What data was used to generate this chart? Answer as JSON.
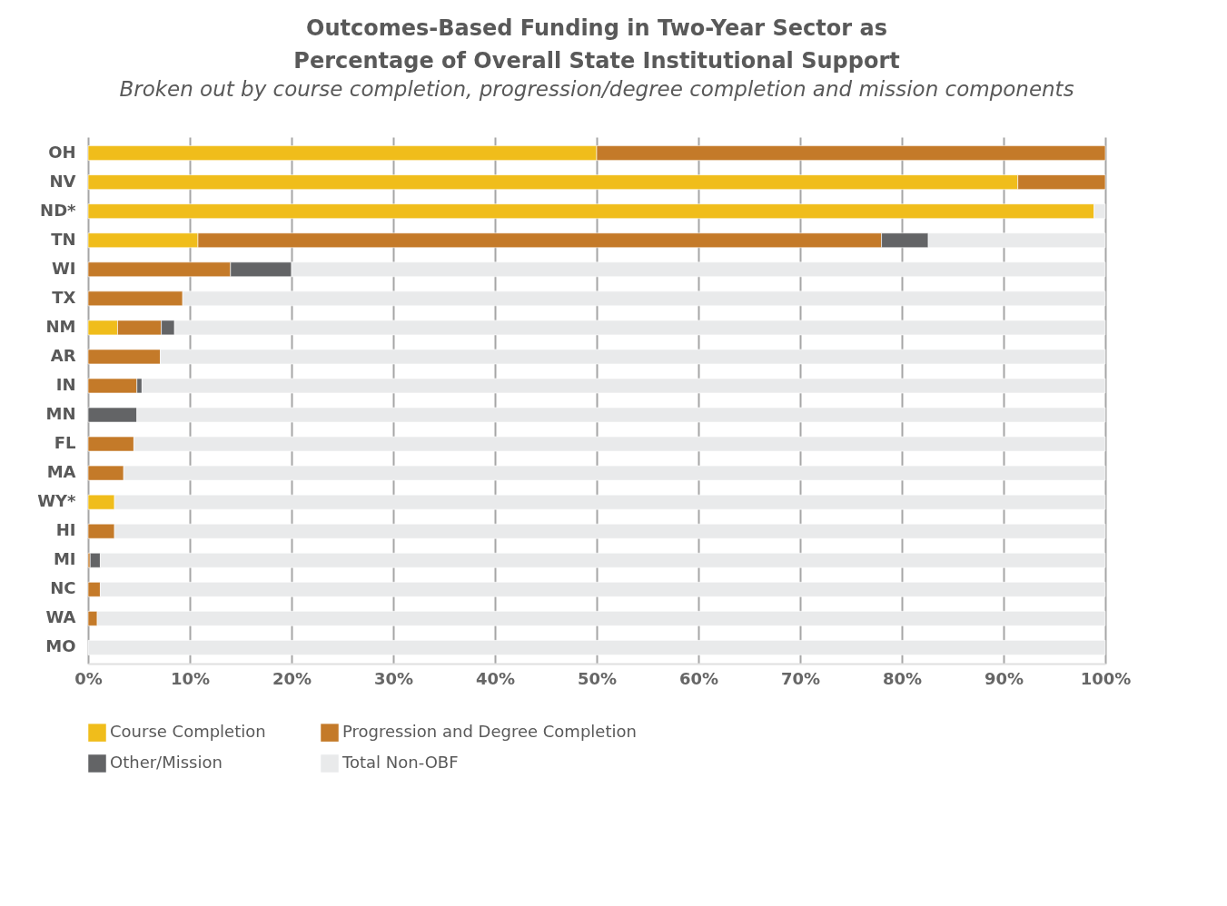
{
  "chart_data": {
    "type": "bar",
    "orientation": "horizontal",
    "stacked": true,
    "title": "Outcomes-Based Funding in Two-Year Sector as Percentage of Overall State Institutional Support",
    "subtitle": "Broken out by course completion, progression/degree completion and mission components",
    "categories": [
      "OH",
      "NV",
      "ND*",
      "TN",
      "WI",
      "TX",
      "NM",
      "AR",
      "IN",
      "MN",
      "FL",
      "MA",
      "WY*",
      "HI",
      "MI",
      "NC",
      "WA",
      "MO"
    ],
    "series": [
      {
        "name": "Course Completion",
        "color": "#f0bd1b",
        "values": [
          50.0,
          91.4,
          98.9,
          10.8,
          null,
          null,
          2.9,
          null,
          null,
          null,
          null,
          null,
          2.6,
          null,
          null,
          null,
          null,
          null
        ]
      },
      {
        "name": "Progression and Degree Completion",
        "color": "#c47a29",
        "values": [
          50.0,
          8.6,
          null,
          67.2,
          14.0,
          9.3,
          4.3,
          7.1,
          4.8,
          null,
          4.5,
          3.5,
          null,
          2.6,
          0.2,
          1.2,
          0.9,
          null
        ]
      },
      {
        "name": "Other/Mission",
        "color": "#636466",
        "values": [
          null,
          null,
          null,
          4.6,
          6.0,
          null,
          1.3,
          null,
          0.5,
          4.8,
          null,
          null,
          null,
          null,
          1.0,
          null,
          null,
          null
        ]
      },
      {
        "name": "Total Non-OBF",
        "color": "#e9eaeb",
        "values": [
          null,
          null,
          1.1,
          17.4,
          80.0,
          90.7,
          91.5,
          92.9,
          94.7,
          95.2,
          95.5,
          96.5,
          97.4,
          97.4,
          98.8,
          98.8,
          99.1,
          100.0
        ]
      }
    ],
    "xlim": [
      0,
      100
    ],
    "xticks": [
      {
        "value": 0,
        "label": "0%"
      },
      {
        "value": 10,
        "label": "10%"
      },
      {
        "value": 20,
        "label": "20%"
      },
      {
        "value": 30,
        "label": "30%"
      },
      {
        "value": 40,
        "label": "40%"
      },
      {
        "value": 50,
        "label": "50%"
      },
      {
        "value": 60,
        "label": "60%"
      },
      {
        "value": 70,
        "label": "70%"
      },
      {
        "value": 80,
        "label": "80%"
      },
      {
        "value": 90,
        "label": "90%"
      },
      {
        "value": 100,
        "label": "100%"
      }
    ],
    "grid": "x",
    "legend": "bottom"
  }
}
